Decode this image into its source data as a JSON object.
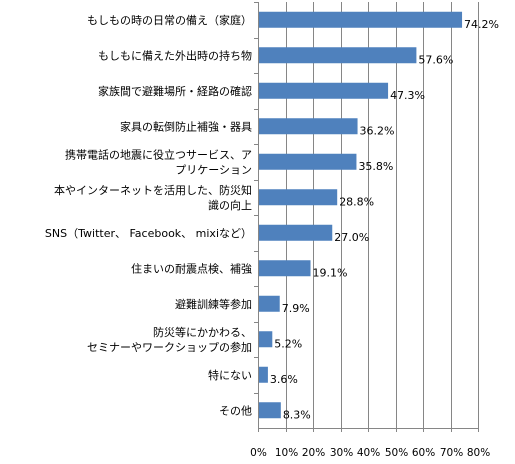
{
  "chart_data": {
    "type": "bar",
    "orientation": "horizontal",
    "categories": [
      "もしもの時の日常の備え（家庭）",
      "もしもに備えた外出時の持ち物",
      "家族間で避難場所・経路の確認",
      "家具の転倒防止補強・器具",
      "携帯電話の地震に役立つサービス、アプリケーション",
      "本やインターネットを活用した、防災知識の向上",
      "SNS（Twitter、 Facebook、 mixiなど）",
      "住まいの耐震点検、補強",
      "避難訓練等参加",
      "防災等にかかわる、セミナーやワークショップの参加",
      "特にない",
      "その他"
    ],
    "category_lines": [
      [
        "もしもの時の日常の備え（家庭）"
      ],
      [
        "もしもに備えた外出時の持ち物"
      ],
      [
        "家族間で避難場所・経路の確認"
      ],
      [
        "家具の転倒防止補強・器具"
      ],
      [
        "携帯電話の地震に役立つサービス、ア",
        "プリケーション"
      ],
      [
        "本やインターネットを活用した、防災知",
        "識の向上"
      ],
      [
        "SNS（Twitter、 Facebook、 mixiなど）"
      ],
      [
        "住まいの耐震点検、補強"
      ],
      [
        "避難訓練等参加"
      ],
      [
        "防災等にかかわる、",
        "セミナーやワークショップの参加"
      ],
      [
        "特にない"
      ],
      [
        "その他"
      ]
    ],
    "values": [
      74.2,
      57.6,
      47.3,
      36.2,
      35.8,
      28.8,
      27.0,
      19.1,
      7.9,
      5.2,
      3.6,
      8.3
    ],
    "value_labels": [
      "74.2%",
      "57.6%",
      "47.3%",
      "36.2%",
      "35.8%",
      "28.8%",
      "27.0%",
      "19.1%",
      "7.9%",
      "5.2%",
      "3.6%",
      "8.3%"
    ],
    "xlim": [
      0,
      80
    ],
    "x_ticks": [
      0,
      10,
      20,
      30,
      40,
      50,
      60,
      70,
      80
    ],
    "x_tick_labels": [
      "0%",
      "10%",
      "20%",
      "30%",
      "40%",
      "50%",
      "60%",
      "70%",
      "80%"
    ],
    "grid": "vertical",
    "legend": "none",
    "title": "",
    "xlabel": "",
    "ylabel": "",
    "colors": {
      "bar": "#4F81BD",
      "grid": "#868686",
      "axis": "#868686"
    }
  }
}
